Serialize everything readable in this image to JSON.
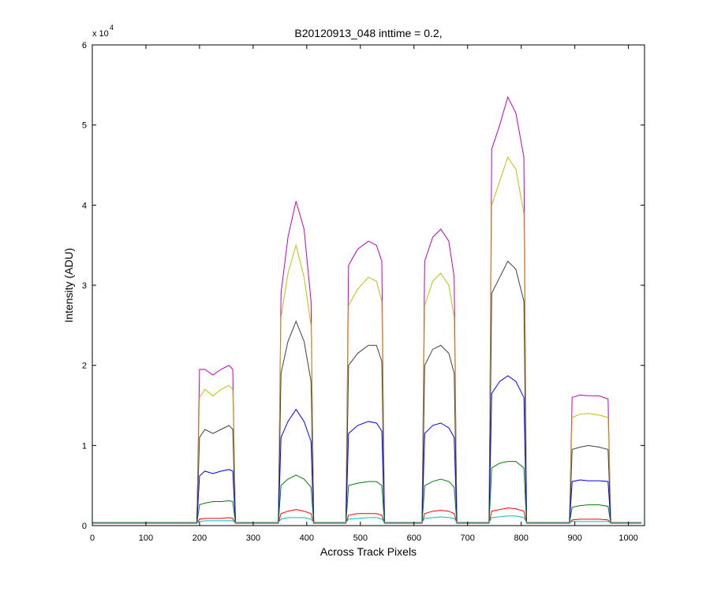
{
  "chart_data": {
    "type": "line",
    "title": "B20120913_048 inttime = 0.2,",
    "x_label": "Across Track Pixels",
    "y_label": "Intensity (ADU)",
    "y_scale_label": {
      "base": "x 10",
      "exponent": "4"
    },
    "xlim": [
      0,
      1030
    ],
    "xticks": [
      0,
      100,
      200,
      300,
      400,
      500,
      600,
      700,
      800,
      900,
      1000
    ],
    "ylim": [
      0,
      6
    ],
    "yticks": [
      0,
      1,
      2,
      3,
      4,
      5,
      6
    ],
    "grid": false,
    "x": [
      0,
      195,
      200,
      210,
      225,
      240,
      255,
      262,
      267,
      347,
      352,
      365,
      380,
      395,
      408,
      413,
      473,
      478,
      495,
      515,
      530,
      540,
      545,
      615,
      620,
      635,
      650,
      665,
      675,
      680,
      740,
      745,
      760,
      775,
      790,
      805,
      810,
      890,
      895,
      910,
      925,
      945,
      962,
      967,
      1024
    ],
    "series": [
      {
        "color": "#bf00bf",
        "values": [
          0.03,
          0.03,
          1.95,
          1.95,
          1.88,
          1.95,
          2.0,
          1.95,
          0.03,
          0.03,
          2.9,
          3.6,
          4.05,
          3.7,
          2.8,
          0.03,
          0.03,
          3.25,
          3.45,
          3.55,
          3.5,
          3.3,
          0.03,
          0.03,
          3.3,
          3.6,
          3.7,
          3.55,
          3.1,
          0.03,
          0.03,
          4.7,
          5.0,
          5.35,
          5.15,
          4.6,
          0.03,
          0.03,
          1.6,
          1.63,
          1.62,
          1.62,
          1.58,
          0.03,
          0.03
        ]
      },
      {
        "color": "#bfbf00",
        "values": [
          0.03,
          0.03,
          1.6,
          1.7,
          1.62,
          1.7,
          1.75,
          1.7,
          0.03,
          0.03,
          2.6,
          3.15,
          3.5,
          3.1,
          2.5,
          0.03,
          0.03,
          2.75,
          2.95,
          3.1,
          3.05,
          2.8,
          0.03,
          0.03,
          2.75,
          3.05,
          3.15,
          3.0,
          2.6,
          0.03,
          0.03,
          4.0,
          4.3,
          4.6,
          4.45,
          3.9,
          0.03,
          0.03,
          1.35,
          1.39,
          1.4,
          1.38,
          1.35,
          0.03,
          0.03
        ]
      },
      {
        "color": "#404040",
        "values": [
          0.03,
          0.03,
          1.1,
          1.2,
          1.15,
          1.2,
          1.25,
          1.2,
          0.03,
          0.03,
          1.9,
          2.3,
          2.55,
          2.3,
          1.8,
          0.03,
          0.03,
          2.0,
          2.15,
          2.25,
          2.25,
          2.05,
          0.03,
          0.03,
          2.0,
          2.2,
          2.25,
          2.15,
          1.9,
          0.03,
          0.03,
          2.9,
          3.1,
          3.3,
          3.2,
          2.8,
          0.03,
          0.03,
          0.95,
          0.98,
          1.0,
          0.98,
          0.95,
          0.03,
          0.03
        ]
      },
      {
        "color": "#0000ff",
        "values": [
          0.03,
          0.03,
          0.62,
          0.68,
          0.65,
          0.68,
          0.7,
          0.68,
          0.03,
          0.03,
          1.1,
          1.3,
          1.45,
          1.3,
          1.05,
          0.03,
          0.03,
          1.15,
          1.25,
          1.3,
          1.28,
          1.18,
          0.03,
          0.03,
          1.15,
          1.25,
          1.28,
          1.22,
          1.1,
          0.03,
          0.03,
          1.65,
          1.8,
          1.87,
          1.8,
          1.6,
          0.03,
          0.03,
          0.55,
          0.57,
          0.56,
          0.56,
          0.55,
          0.03,
          0.03
        ]
      },
      {
        "color": "#008000",
        "values": [
          0.03,
          0.03,
          0.26,
          0.28,
          0.3,
          0.3,
          0.31,
          0.3,
          0.03,
          0.03,
          0.5,
          0.58,
          0.63,
          0.58,
          0.48,
          0.03,
          0.03,
          0.5,
          0.53,
          0.55,
          0.55,
          0.5,
          0.03,
          0.03,
          0.5,
          0.55,
          0.58,
          0.55,
          0.48,
          0.03,
          0.03,
          0.72,
          0.78,
          0.8,
          0.8,
          0.72,
          0.03,
          0.03,
          0.23,
          0.25,
          0.26,
          0.26,
          0.24,
          0.03,
          0.03
        ]
      },
      {
        "color": "#ff0000",
        "values": [
          0.03,
          0.03,
          0.08,
          0.09,
          0.09,
          0.09,
          0.1,
          0.09,
          0.03,
          0.03,
          0.15,
          0.18,
          0.2,
          0.18,
          0.15,
          0.03,
          0.03,
          0.13,
          0.15,
          0.15,
          0.15,
          0.13,
          0.03,
          0.03,
          0.15,
          0.18,
          0.19,
          0.18,
          0.15,
          0.03,
          0.03,
          0.18,
          0.2,
          0.22,
          0.21,
          0.18,
          0.03,
          0.03,
          0.07,
          0.08,
          0.08,
          0.08,
          0.07,
          0.03,
          0.03
        ]
      },
      {
        "color": "#00bfbf",
        "values": [
          0.04,
          0.04,
          0.05,
          0.06,
          0.06,
          0.06,
          0.06,
          0.06,
          0.04,
          0.04,
          0.08,
          0.1,
          0.1,
          0.1,
          0.08,
          0.04,
          0.04,
          0.08,
          0.09,
          0.1,
          0.1,
          0.08,
          0.04,
          0.04,
          0.09,
          0.1,
          0.11,
          0.1,
          0.09,
          0.04,
          0.04,
          0.1,
          0.11,
          0.12,
          0.12,
          0.1,
          0.04,
          0.04,
          0.05,
          0.05,
          0.05,
          0.05,
          0.05,
          0.04,
          0.04
        ]
      }
    ]
  }
}
